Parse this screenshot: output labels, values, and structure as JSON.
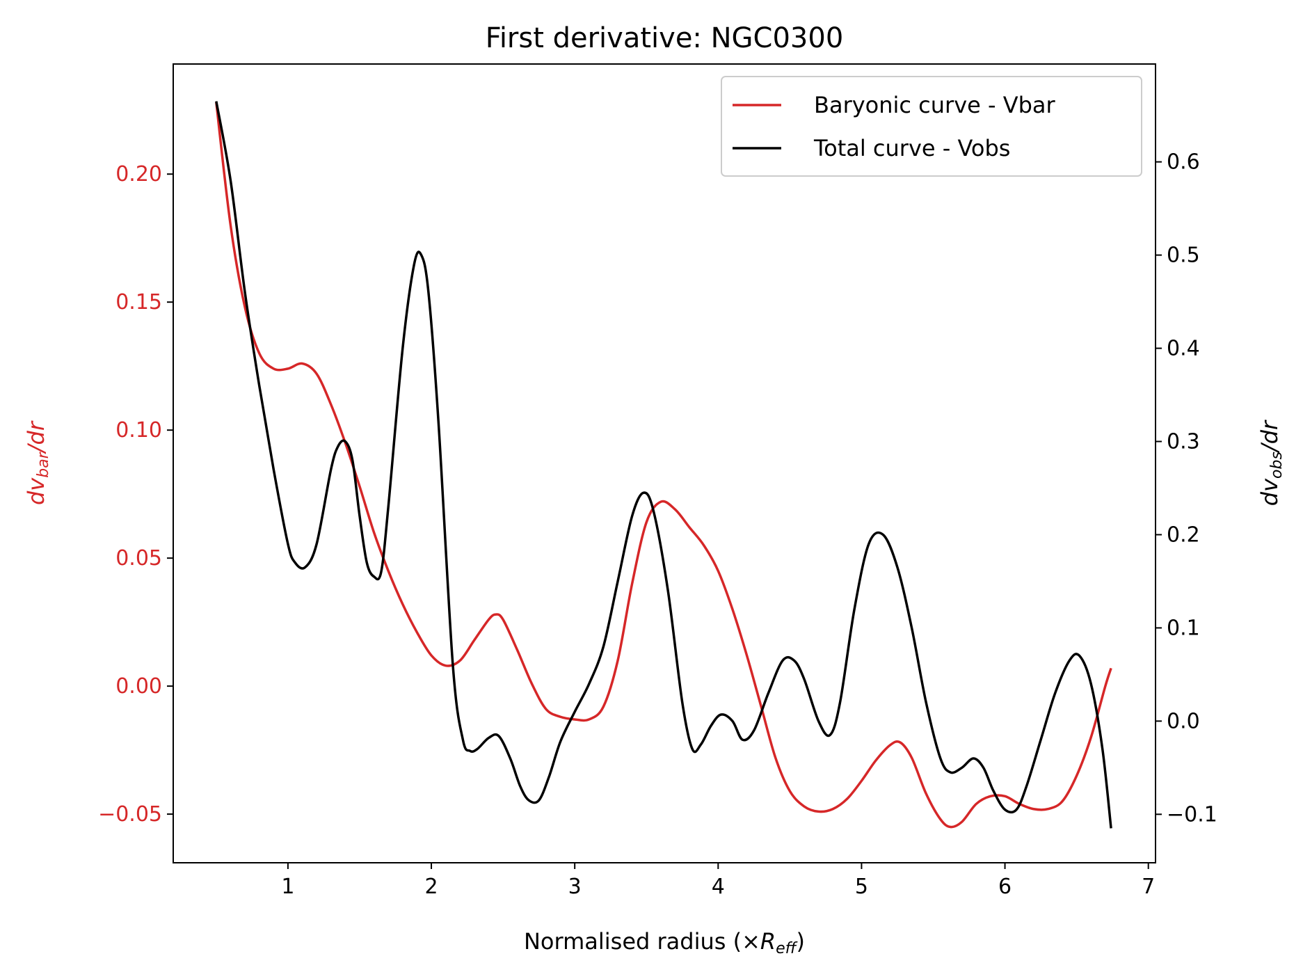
{
  "chart_data": {
    "type": "line",
    "title": "First derivative: NGC0300",
    "xlabel": {
      "pre": "Normalised radius (×",
      "sym": "R",
      "sub": "eff",
      "post": ")"
    },
    "ylabel_left": {
      "sym": "dv",
      "sub": "bar",
      "post": "/dr"
    },
    "ylabel_right": {
      "sym": "dv",
      "sub": "obs",
      "post": "/dr"
    },
    "xlim": [
      0.2,
      7.05
    ],
    "ylim_left": [
      -0.069,
      0.243
    ],
    "ylim_right": [
      -0.152,
      0.705
    ],
    "x_ticks": [
      1,
      2,
      3,
      4,
      5,
      6,
      7
    ],
    "x_tick_labels": [
      "1",
      "2",
      "3",
      "4",
      "5",
      "6",
      "7"
    ],
    "y_left_ticks": [
      -0.05,
      0.0,
      0.05,
      0.1,
      0.15,
      0.2
    ],
    "y_left_tick_labels": [
      "−0.05",
      "0.00",
      "0.05",
      "0.10",
      "0.15",
      "0.20"
    ],
    "y_right_ticks": [
      -0.1,
      0.0,
      0.1,
      0.2,
      0.3,
      0.4,
      0.5,
      0.6
    ],
    "y_right_tick_labels": [
      "−0.1",
      "0.0",
      "0.1",
      "0.2",
      "0.3",
      "0.4",
      "0.5",
      "0.6"
    ],
    "legend_position": "top-right",
    "grid": false,
    "colors": {
      "left_axis": "#d62728",
      "right_axis": "#000000"
    },
    "series": [
      {
        "name": "Baryonic curve - Vbar",
        "axis": "left",
        "color": "#d62728",
        "x": [
          0.5,
          0.6,
          0.7,
          0.8,
          0.9,
          1.0,
          1.1,
          1.2,
          1.3,
          1.4,
          1.5,
          1.6,
          1.7,
          1.8,
          1.9,
          2.0,
          2.1,
          2.2,
          2.3,
          2.4,
          2.45,
          2.5,
          2.6,
          2.7,
          2.8,
          2.9,
          3.0,
          3.1,
          3.2,
          3.3,
          3.4,
          3.5,
          3.6,
          3.7,
          3.8,
          3.9,
          4.0,
          4.1,
          4.2,
          4.3,
          4.4,
          4.5,
          4.6,
          4.7,
          4.8,
          4.9,
          5.0,
          5.1,
          5.2,
          5.27,
          5.35,
          5.45,
          5.55,
          5.62,
          5.7,
          5.8,
          5.9,
          6.0,
          6.1,
          6.2,
          6.3,
          6.4,
          6.5,
          6.6,
          6.7,
          6.74
        ],
        "values": [
          0.228,
          0.18,
          0.148,
          0.13,
          0.124,
          0.124,
          0.126,
          0.122,
          0.11,
          0.095,
          0.078,
          0.06,
          0.045,
          0.032,
          0.021,
          0.012,
          0.008,
          0.01,
          0.018,
          0.026,
          0.028,
          0.026,
          0.014,
          0.001,
          -0.009,
          -0.012,
          -0.013,
          -0.013,
          -0.008,
          0.01,
          0.04,
          0.064,
          0.072,
          0.069,
          0.062,
          0.055,
          0.045,
          0.03,
          0.012,
          -0.008,
          -0.028,
          -0.041,
          -0.047,
          -0.049,
          -0.048,
          -0.044,
          -0.037,
          -0.029,
          -0.023,
          -0.022,
          -0.028,
          -0.042,
          -0.052,
          -0.055,
          -0.053,
          -0.046,
          -0.043,
          -0.043,
          -0.046,
          -0.048,
          -0.048,
          -0.045,
          -0.035,
          -0.02,
          0.0,
          0.007
        ]
      },
      {
        "name": "Total curve - Vobs",
        "axis": "right",
        "color": "#000000",
        "x": [
          0.5,
          0.6,
          0.7,
          0.8,
          0.9,
          1.0,
          1.05,
          1.12,
          1.2,
          1.3,
          1.35,
          1.4,
          1.45,
          1.5,
          1.55,
          1.6,
          1.65,
          1.7,
          1.8,
          1.88,
          1.93,
          1.98,
          2.05,
          2.15,
          2.22,
          2.27,
          2.32,
          2.4,
          2.47,
          2.55,
          2.62,
          2.68,
          2.75,
          2.82,
          2.9,
          3.0,
          3.1,
          3.2,
          3.3,
          3.4,
          3.48,
          3.55,
          3.65,
          3.75,
          3.82,
          3.88,
          3.95,
          4.02,
          4.1,
          4.17,
          4.25,
          4.35,
          4.45,
          4.53,
          4.6,
          4.7,
          4.78,
          4.85,
          4.95,
          5.05,
          5.15,
          5.25,
          5.35,
          5.45,
          5.55,
          5.62,
          5.7,
          5.78,
          5.85,
          5.92,
          6.0,
          6.08,
          6.15,
          6.25,
          6.35,
          6.45,
          6.52,
          6.6,
          6.68,
          6.74
        ],
        "values": [
          0.665,
          0.58,
          0.46,
          0.36,
          0.27,
          0.19,
          0.17,
          0.165,
          0.19,
          0.27,
          0.295,
          0.3,
          0.28,
          0.22,
          0.17,
          0.155,
          0.16,
          0.23,
          0.4,
          0.49,
          0.5,
          0.46,
          0.32,
          0.06,
          -0.02,
          -0.032,
          -0.03,
          -0.018,
          -0.016,
          -0.04,
          -0.07,
          -0.085,
          -0.085,
          -0.06,
          -0.022,
          0.01,
          0.04,
          0.08,
          0.15,
          0.22,
          0.245,
          0.225,
          0.14,
          0.02,
          -0.03,
          -0.025,
          -0.005,
          0.007,
          0.0,
          -0.02,
          -0.01,
          0.03,
          0.065,
          0.065,
          0.045,
          0.0,
          -0.015,
          0.02,
          0.12,
          0.19,
          0.2,
          0.165,
          0.1,
          0.02,
          -0.04,
          -0.055,
          -0.05,
          -0.04,
          -0.05,
          -0.075,
          -0.095,
          -0.095,
          -0.07,
          -0.02,
          0.03,
          0.065,
          0.07,
          0.04,
          -0.03,
          -0.115
        ]
      }
    ]
  }
}
